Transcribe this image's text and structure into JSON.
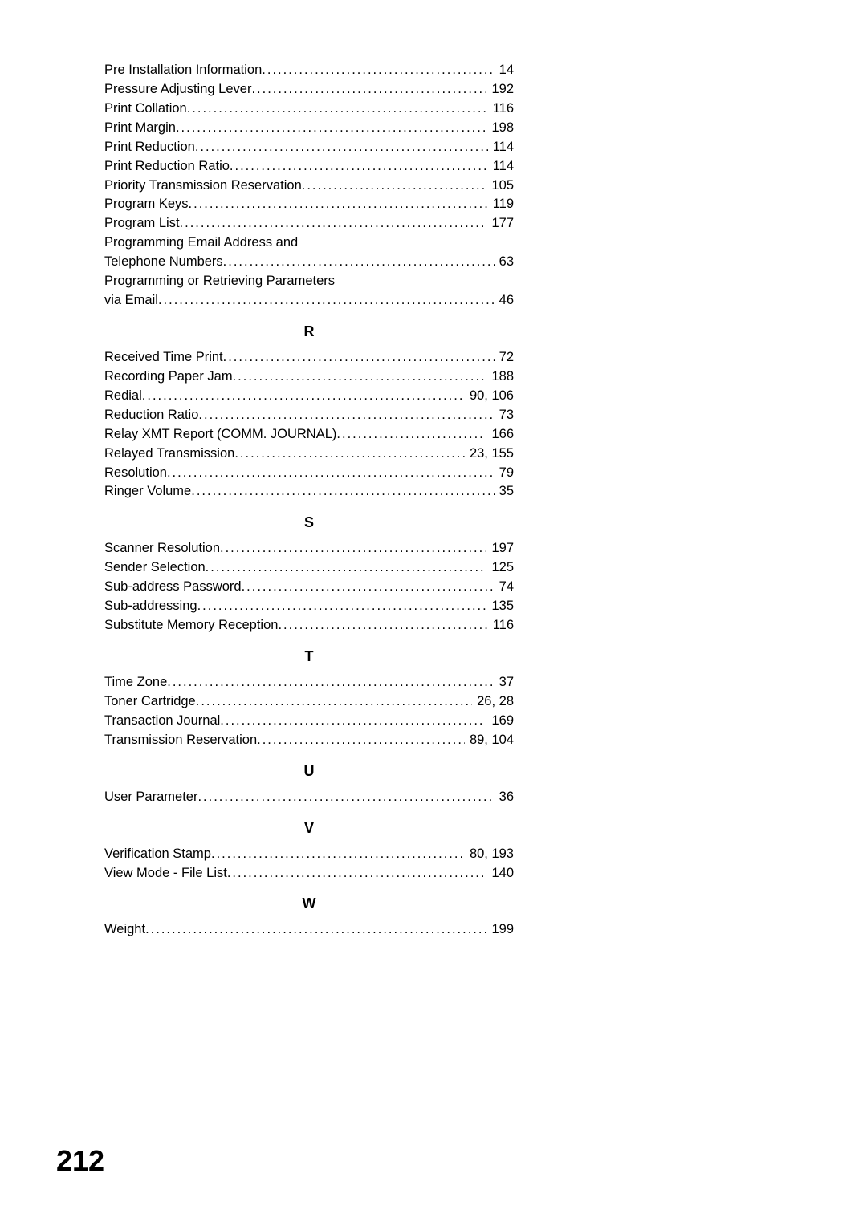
{
  "sections": [
    {
      "heading": null,
      "entries": [
        {
          "label": "Pre Installation Information",
          "page": "14"
        },
        {
          "label": "Pressure Adjusting Lever",
          "page": "192"
        },
        {
          "label": "Print Collation",
          "page": "116"
        },
        {
          "label": "Print Margin",
          "page": "198"
        },
        {
          "label": "Print Reduction",
          "page": "114"
        },
        {
          "label": "Print Reduction Ratio",
          "page": "114"
        },
        {
          "label": "Priority Transmission Reservation",
          "page": "105"
        },
        {
          "label": "Program Keys",
          "page": "119"
        },
        {
          "label": "Program List",
          "page": "177"
        },
        {
          "label": "Programming Email Address and",
          "page": null
        },
        {
          "label": "Telephone Numbers",
          "page": "63"
        },
        {
          "label": "Programming or Retrieving Parameters",
          "page": null
        },
        {
          "label": "via Email",
          "page": "46"
        }
      ]
    },
    {
      "heading": "R",
      "entries": [
        {
          "label": "Received Time Print",
          "page": "72"
        },
        {
          "label": "Recording Paper Jam",
          "page": "188"
        },
        {
          "label": "Redial",
          "page": "90, 106"
        },
        {
          "label": "Reduction Ratio",
          "page": "73"
        },
        {
          "label": "Relay XMT Report (COMM. JOURNAL)",
          "page": "166"
        },
        {
          "label": "Relayed Transmission",
          "page": "23, 155"
        },
        {
          "label": "Resolution",
          "page": "79"
        },
        {
          "label": "Ringer Volume",
          "page": "35"
        }
      ]
    },
    {
      "heading": "S",
      "entries": [
        {
          "label": "Scanner Resolution",
          "page": "197"
        },
        {
          "label": "Sender Selection",
          "page": "125"
        },
        {
          "label": "Sub-address Password",
          "page": "74"
        },
        {
          "label": "Sub-addressing",
          "page": "135"
        },
        {
          "label": "Substitute Memory Reception",
          "page": "116"
        }
      ]
    },
    {
      "heading": "T",
      "entries": [
        {
          "label": "Time Zone",
          "page": "37"
        },
        {
          "label": "Toner Cartridge",
          "page": "26, 28"
        },
        {
          "label": "Transaction Journal",
          "page": "169"
        },
        {
          "label": "Transmission Reservation",
          "page": "89, 104"
        }
      ]
    },
    {
      "heading": "U",
      "entries": [
        {
          "label": "User Parameter",
          "page": "36"
        }
      ]
    },
    {
      "heading": "V",
      "entries": [
        {
          "label": "Verification Stamp",
          "page": "80, 193"
        },
        {
          "label": "View Mode - File List",
          "page": "140"
        }
      ]
    },
    {
      "heading": "W",
      "entries": [
        {
          "label": "Weight",
          "page": "199"
        }
      ]
    }
  ],
  "pageNumber": "212"
}
